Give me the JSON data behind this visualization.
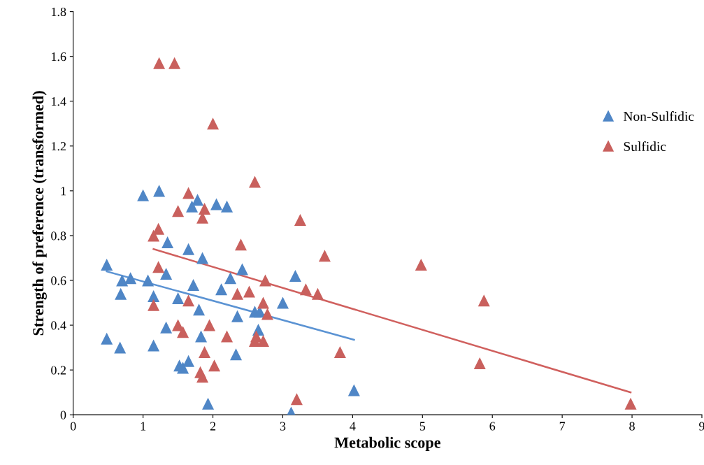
{
  "chart_data": {
    "type": "scatter",
    "xlabel": "Metabolic scope",
    "ylabel": "Strength of preference (transformed)",
    "xlim": [
      0,
      9
    ],
    "xticks": [
      0,
      1,
      2,
      3,
      4,
      5,
      6,
      7,
      8,
      9
    ],
    "ylim": [
      0,
      1.8
    ],
    "yticks": [
      0,
      0.2,
      0.4,
      0.6,
      0.8,
      1,
      1.2,
      1.4,
      1.6,
      1.8
    ],
    "grid": false,
    "legend": "right",
    "marker": "triangle",
    "series": [
      {
        "name": "Non-Sulfidic",
        "color": "#4f86c6",
        "x": [
          0.48,
          0.48,
          0.67,
          0.68,
          0.7,
          0.82,
          1.0,
          1.07,
          1.15,
          1.15,
          1.23,
          1.33,
          1.33,
          1.35,
          1.5,
          1.52,
          1.57,
          1.65,
          1.65,
          1.7,
          1.72,
          1.78,
          1.8,
          1.83,
          1.85,
          1.93,
          2.05,
          2.12,
          2.2,
          2.25,
          2.33,
          2.35,
          2.42,
          2.6,
          2.65,
          2.67,
          3.0,
          3.12,
          3.18,
          4.02
        ],
        "values": [
          0.67,
          0.34,
          0.3,
          0.54,
          0.6,
          0.61,
          0.98,
          0.6,
          0.53,
          0.31,
          1.0,
          0.39,
          0.63,
          0.77,
          0.52,
          0.22,
          0.21,
          0.24,
          0.74,
          0.93,
          0.58,
          0.96,
          0.47,
          0.35,
          0.7,
          0.05,
          0.94,
          0.56,
          0.93,
          0.61,
          0.27,
          0.44,
          0.65,
          0.46,
          0.38,
          0.46,
          0.5,
          0.01,
          0.62,
          0.11
        ]
      },
      {
        "name": "Sulfidic",
        "color": "#c9605d",
        "x": [
          1.15,
          1.15,
          1.22,
          1.22,
          1.23,
          1.45,
          1.5,
          1.5,
          1.57,
          1.65,
          1.65,
          1.82,
          1.85,
          1.85,
          1.88,
          1.88,
          1.95,
          2.0,
          2.02,
          2.2,
          2.35,
          2.4,
          2.52,
          2.6,
          2.6,
          2.62,
          2.72,
          2.72,
          2.75,
          2.78,
          3.2,
          3.25,
          3.33,
          3.5,
          3.6,
          3.82,
          4.98,
          5.82,
          5.88,
          7.98
        ],
        "values": [
          0.8,
          0.49,
          0.83,
          0.66,
          1.57,
          1.57,
          0.91,
          0.4,
          0.37,
          0.99,
          0.51,
          0.19,
          0.17,
          0.88,
          0.92,
          0.28,
          0.4,
          1.3,
          0.22,
          0.35,
          0.54,
          0.76,
          0.55,
          1.04,
          0.33,
          0.35,
          0.33,
          0.5,
          0.6,
          0.45,
          0.07,
          0.87,
          0.56,
          0.54,
          0.71,
          0.28,
          0.67,
          0.23,
          0.51,
          0.05
        ]
      },
      {
        "type": "line",
        "marker": "none",
        "color": "#5b93d3",
        "x": [
          0.48,
          4.02
        ],
        "values": [
          0.64,
          0.335
        ]
      },
      {
        "type": "line",
        "marker": "none",
        "color": "#d0605e",
        "x": [
          1.15,
          7.98
        ],
        "values": [
          0.74,
          0.1
        ]
      }
    ]
  }
}
